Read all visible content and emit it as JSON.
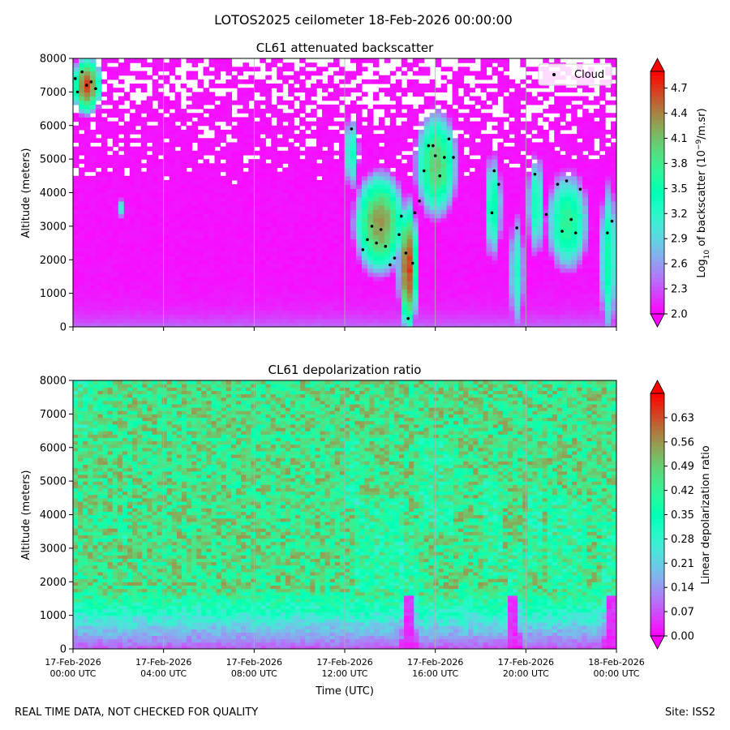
{
  "figure_title": "LOTOS2025 ceilometer 18-Feb-2026 00:00:00",
  "footer_left": "REAL TIME DATA, NOT CHECKED FOR QUALITY",
  "footer_right": "Site: ISS2",
  "chart_data": [
    {
      "type": "heatmap",
      "title": "CL61 attenuated backscatter",
      "ylabel": "Altitude (meters)",
      "xlabel": "",
      "ylim": [
        0,
        8000
      ],
      "xlim_hours": [
        0,
        24
      ],
      "yticks": [
        0,
        1000,
        2000,
        3000,
        4000,
        5000,
        6000,
        7000,
        8000
      ],
      "xticks_hours": [
        0,
        4,
        8,
        12,
        16,
        20,
        24
      ],
      "xtick_labels_line1": [
        "",
        "",
        "",
        "",
        "",
        "",
        ""
      ],
      "xtick_labels_line2": [
        "",
        "",
        "",
        "",
        "",
        "",
        ""
      ],
      "grid_x": true,
      "colorbar": {
        "label": "Log10 of backscatter (10^-9/m.sr)",
        "range": [
          2.0,
          4.9
        ],
        "ticks": [
          "2.0",
          "2.3",
          "2.6",
          "2.9",
          "3.2",
          "3.5",
          "3.8",
          "4.1",
          "4.4",
          "4.7"
        ],
        "extend": "both"
      },
      "legend": {
        "placement": "top-right",
        "entries": [
          "Cloud"
        ]
      },
      "cloud_points": [
        [
          0.1,
          7400
        ],
        [
          0.2,
          7000
        ],
        [
          0.4,
          7600
        ],
        [
          0.6,
          7200
        ],
        [
          0.8,
          7300
        ],
        [
          1.0,
          7100
        ],
        [
          12.3,
          5900
        ],
        [
          12.8,
          2300
        ],
        [
          13.0,
          2600
        ],
        [
          13.2,
          3000
        ],
        [
          13.4,
          2500
        ],
        [
          13.6,
          2900
        ],
        [
          13.8,
          2400
        ],
        [
          14.0,
          1850
        ],
        [
          14.2,
          2050
        ],
        [
          14.4,
          2750
        ],
        [
          14.5,
          3300
        ],
        [
          14.7,
          2200
        ],
        [
          14.8,
          250
        ],
        [
          15.0,
          1900
        ],
        [
          15.1,
          3400
        ],
        [
          15.3,
          3750
        ],
        [
          15.5,
          4650
        ],
        [
          15.7,
          5400
        ],
        [
          15.9,
          5400
        ],
        [
          16.0,
          5100
        ],
        [
          16.2,
          4500
        ],
        [
          16.4,
          5050
        ],
        [
          16.6,
          5600
        ],
        [
          16.8,
          5050
        ],
        [
          18.5,
          3400
        ],
        [
          18.6,
          4650
        ],
        [
          18.8,
          4250
        ],
        [
          19.6,
          2950
        ],
        [
          20.4,
          4550
        ],
        [
          20.9,
          3350
        ],
        [
          21.4,
          4250
        ],
        [
          21.6,
          2850
        ],
        [
          21.8,
          4350
        ],
        [
          22.0,
          3200
        ],
        [
          22.2,
          2800
        ],
        [
          22.4,
          4100
        ],
        [
          23.6,
          2800
        ],
        [
          23.8,
          3150
        ]
      ],
      "cloud_features": [
        {
          "name": "early-upper-layer",
          "t0": 0.0,
          "t1": 1.2,
          "base": 6400,
          "top": 8000,
          "peak": 4.7
        },
        {
          "name": "small-patch",
          "t0": 1.9,
          "t1": 2.3,
          "base": 3300,
          "top": 3800,
          "peak": 3.2
        },
        {
          "name": "afternoon-cloud-a",
          "t0": 12.0,
          "t1": 12.6,
          "base": 4200,
          "top": 6200,
          "peak": 3.4
        },
        {
          "name": "afternoon-cloud-b",
          "t0": 12.5,
          "t1": 14.6,
          "base": 1700,
          "top": 4500,
          "peak": 4.4
        },
        {
          "name": "afternoon-cloud-c",
          "t0": 14.4,
          "t1": 15.2,
          "base": 0,
          "top": 3600,
          "peak": 4.8
        },
        {
          "name": "afternoon-cloud-d",
          "t0": 15.2,
          "t1": 16.9,
          "base": 3400,
          "top": 6300,
          "peak": 4.1
        },
        {
          "name": "evening-cloud-a",
          "t0": 18.2,
          "t1": 18.9,
          "base": 2200,
          "top": 5000,
          "peak": 3.6
        },
        {
          "name": "evening-cloud-b",
          "t0": 19.3,
          "t1": 19.9,
          "base": 0,
          "top": 3200,
          "peak": 3.3
        },
        {
          "name": "evening-cloud-c",
          "t0": 20.1,
          "t1": 20.8,
          "base": 2300,
          "top": 5000,
          "peak": 3.5
        },
        {
          "name": "evening-cloud-d",
          "t0": 21.0,
          "t1": 22.7,
          "base": 1800,
          "top": 4500,
          "peak": 3.8
        },
        {
          "name": "late-cloud",
          "t0": 23.3,
          "t1": 24.0,
          "base": 0,
          "top": 4100,
          "peak": 3.6
        }
      ]
    },
    {
      "type": "heatmap",
      "title": "CL61 depolarization ratio",
      "ylabel": "Altitude (meters)",
      "xlabel": "Time (UTC)",
      "ylim": [
        0,
        8000
      ],
      "xlim_hours": [
        0,
        24
      ],
      "yticks": [
        0,
        1000,
        2000,
        3000,
        4000,
        5000,
        6000,
        7000,
        8000
      ],
      "xticks_hours": [
        0,
        4,
        8,
        12,
        16,
        20,
        24
      ],
      "xtick_labels_line1": [
        "17-Feb-2026",
        "17-Feb-2026",
        "17-Feb-2026",
        "17-Feb-2026",
        "17-Feb-2026",
        "17-Feb-2026",
        "18-Feb-2026"
      ],
      "xtick_labels_line2": [
        "00:00 UTC",
        "04:00 UTC",
        "08:00 UTC",
        "12:00 UTC",
        "16:00 UTC",
        "20:00 UTC",
        "00:00 UTC"
      ],
      "grid_x": true,
      "colorbar": {
        "label": "Linear depolarization ratio",
        "range": [
          0.0,
          0.7
        ],
        "ticks": [
          "0.00",
          "0.07",
          "0.14",
          "0.21",
          "0.28",
          "0.35",
          "0.42",
          "0.49",
          "0.56",
          "0.63"
        ],
        "extend": "both"
      },
      "low_layer": {
        "top_altitude_m": 1500,
        "min_ratio": 0.05,
        "upper_mean_ratio": 0.45
      }
    }
  ]
}
